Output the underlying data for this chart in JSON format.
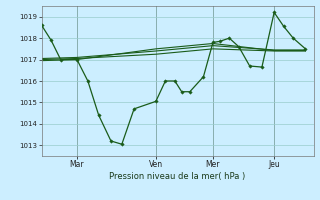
{
  "title": "",
  "xlabel": "Pression niveau de la mer( hPa )",
  "background_color": "#cceeff",
  "grid_color": "#99cccc",
  "line_color": "#1a5c1a",
  "ylim": [
    1012.5,
    1019.5
  ],
  "yticks": [
    1013,
    1014,
    1015,
    1016,
    1017,
    1018,
    1019
  ],
  "day_labels": [
    "Mar",
    "Ven",
    "Mer",
    "Jeu"
  ],
  "day_positions": [
    0.13,
    0.42,
    0.63,
    0.855
  ],
  "series1": {
    "x": [
      0.0,
      0.035,
      0.07,
      0.13,
      0.17,
      0.21,
      0.255,
      0.295,
      0.34,
      0.42,
      0.455,
      0.49,
      0.515,
      0.545,
      0.595,
      0.63,
      0.655,
      0.69,
      0.725,
      0.765,
      0.81,
      0.855,
      0.89,
      0.925,
      0.97
    ],
    "y": [
      1018.6,
      1017.9,
      1017.0,
      1017.0,
      1016.0,
      1014.4,
      1013.2,
      1013.05,
      1014.7,
      1015.05,
      1016.0,
      1016.0,
      1015.5,
      1015.5,
      1016.2,
      1017.8,
      1017.85,
      1018.0,
      1017.6,
      1016.7,
      1016.65,
      1019.2,
      1018.55,
      1018.0,
      1017.5
    ]
  },
  "series2": {
    "x": [
      0.0,
      0.13,
      0.42,
      0.63,
      0.855,
      0.97
    ],
    "y": [
      1017.0,
      1017.05,
      1017.25,
      1017.5,
      1017.4,
      1017.4
    ]
  },
  "series3": {
    "x": [
      0.0,
      0.13,
      0.42,
      0.63,
      0.855,
      0.97
    ],
    "y": [
      1017.05,
      1017.1,
      1017.4,
      1017.65,
      1017.45,
      1017.45
    ]
  },
  "series4": {
    "x": [
      0.0,
      0.13,
      0.42,
      0.63,
      0.855,
      0.97
    ],
    "y": [
      1016.95,
      1017.0,
      1017.5,
      1017.75,
      1017.42,
      1017.42
    ]
  },
  "vline_color": "#555555",
  "vline_positions": [
    0.13,
    0.42,
    0.63,
    0.855
  ]
}
